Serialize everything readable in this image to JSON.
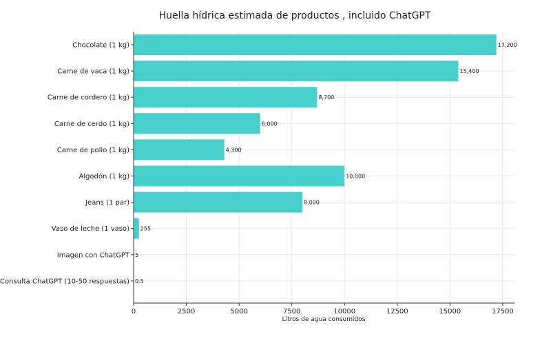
{
  "chart_data": {
    "type": "bar",
    "orientation": "horizontal",
    "title": "Huella hídrica estimada de productos , incluido ChatGPT",
    "xlabel": "Litros de agua consumidos",
    "ylabel": "",
    "categories": [
      "Chocolate (1 kg)",
      "Carne de vaca (1 kg)",
      "Carne de cordero (1 kg)",
      "Carne de cerdo (1 kg)",
      "Carne de pollo (1 kg)",
      "Algodón (1 kg)",
      "Jeans (1 par)",
      "Vaso de leche (1 vaso)",
      "Imagen con ChatGPT",
      "Consulta ChatGPT (10-50 respuestas)"
    ],
    "values": [
      17200,
      15400,
      8700,
      6000,
      4300,
      10000,
      8000,
      255,
      5,
      0.5
    ],
    "data_labels": [
      "17,200",
      "15,400",
      "8,700",
      "6,000",
      "4,300",
      "10,000",
      "8,000",
      "255",
      "5",
      "0.5"
    ],
    "xticks": [
      0,
      2500,
      5000,
      7500,
      10000,
      12500,
      15000,
      17500
    ],
    "xtick_labels": [
      "0",
      "2500",
      "5000",
      "7500",
      "10000",
      "12500",
      "15000",
      "17500"
    ],
    "xlim": [
      0,
      18060
    ],
    "grid": true,
    "legend": "none",
    "colors": {
      "bar": "#48d1cc",
      "grid": "#e6e6e6",
      "axis": "#333333",
      "text": "#222222"
    }
  }
}
